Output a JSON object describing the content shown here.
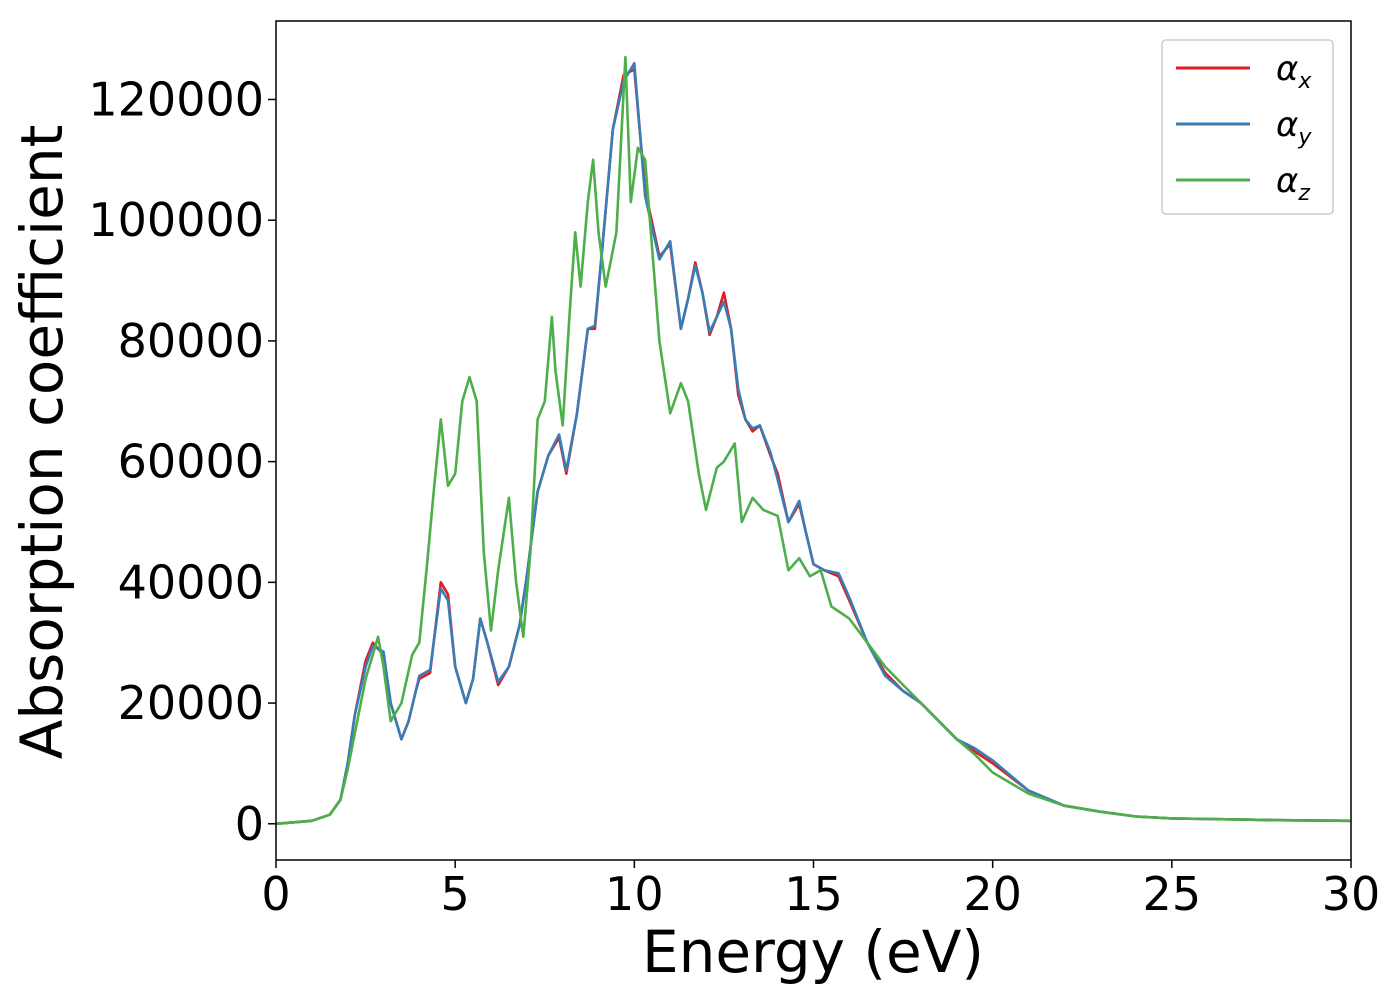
{
  "chart_data": {
    "type": "line",
    "xlabel": "Energy (eV)",
    "ylabel": "Absorption coefficient",
    "xlim": [
      0,
      30
    ],
    "ylim": [
      -6000,
      133000
    ],
    "xticks": [
      "0",
      "5",
      "10",
      "15",
      "20",
      "25",
      "30"
    ],
    "yticks": [
      "0",
      "20000",
      "40000",
      "60000",
      "80000",
      "100000",
      "120000"
    ],
    "grid": false,
    "legend_position": "top-right",
    "series": [
      {
        "name": "α_x",
        "legend_main": "α",
        "legend_sub": "x",
        "color": "#e41a1c",
        "x": [
          0,
          1,
          1.5,
          1.8,
          2.0,
          2.2,
          2.5,
          2.7,
          3.0,
          3.2,
          3.5,
          3.7,
          3.9,
          4.0,
          4.3,
          4.6,
          4.8,
          5.0,
          5.3,
          5.5,
          5.7,
          5.9,
          6.2,
          6.5,
          6.8,
          7.0,
          7.3,
          7.6,
          7.9,
          8.1,
          8.4,
          8.7,
          8.9,
          9.1,
          9.4,
          9.7,
          10.0,
          10.3,
          10.7,
          11.0,
          11.3,
          11.5,
          11.7,
          11.9,
          12.1,
          12.3,
          12.5,
          12.7,
          12.9,
          13.1,
          13.3,
          13.5,
          13.8,
          14.0,
          14.3,
          14.6,
          14.8,
          15.0,
          15.3,
          15.7,
          16.0,
          16.5,
          17.0,
          17.5,
          18.0,
          18.5,
          19.0,
          19.5,
          20.0,
          21.0,
          22.0,
          23.0,
          24.0,
          25.0,
          26.0,
          27.0,
          28.0,
          30.0
        ],
        "y": [
          0,
          500,
          1500,
          4000,
          10000,
          18000,
          27000,
          30000,
          28000,
          20000,
          14000,
          17000,
          22000,
          24000,
          25000,
          40000,
          38000,
          26000,
          20000,
          24000,
          34000,
          30000,
          23000,
          26000,
          33000,
          41000,
          55000,
          61000,
          64000,
          58000,
          68000,
          82000,
          82000,
          95000,
          115000,
          124000,
          125000,
          105000,
          94000,
          96000,
          82000,
          87000,
          93000,
          88000,
          81000,
          84000,
          88000,
          82000,
          71000,
          67000,
          65000,
          66000,
          61000,
          58000,
          50000,
          53000,
          48000,
          43000,
          42000,
          41000,
          37000,
          30000,
          25000,
          22000,
          20000,
          17000,
          14000,
          12000,
          10000,
          5500,
          3000,
          2000,
          1200,
          900,
          800,
          700,
          600,
          500
        ]
      },
      {
        "name": "α_y",
        "legend_main": "α",
        "legend_sub": "y",
        "color": "#377eb8",
        "x": [
          0,
          1,
          1.5,
          1.8,
          2.0,
          2.2,
          2.5,
          2.7,
          3.0,
          3.2,
          3.5,
          3.7,
          3.9,
          4.0,
          4.3,
          4.6,
          4.8,
          5.0,
          5.3,
          5.5,
          5.7,
          5.9,
          6.2,
          6.5,
          6.8,
          7.0,
          7.3,
          7.6,
          7.9,
          8.1,
          8.4,
          8.7,
          8.9,
          9.1,
          9.4,
          9.7,
          10.0,
          10.3,
          10.7,
          11.0,
          11.3,
          11.5,
          11.7,
          11.9,
          12.1,
          12.3,
          12.5,
          12.7,
          12.9,
          13.1,
          13.3,
          13.5,
          13.8,
          14.0,
          14.3,
          14.6,
          14.8,
          15.0,
          15.3,
          15.7,
          16.0,
          16.5,
          17.0,
          17.5,
          18.0,
          18.5,
          19.0,
          19.5,
          20.0,
          21.0,
          22.0,
          23.0,
          24.0,
          25.0,
          26.0,
          27.0,
          28.0,
          30.0
        ],
        "y": [
          0,
          500,
          1500,
          4000,
          10000,
          18000,
          26000,
          29500,
          28500,
          20000,
          14000,
          17000,
          22000,
          24500,
          25500,
          39000,
          37000,
          26000,
          20000,
          24000,
          34000,
          30000,
          23500,
          26000,
          33000,
          41000,
          55000,
          61000,
          64500,
          58500,
          68000,
          82000,
          82500,
          95000,
          115000,
          123000,
          126000,
          104000,
          93500,
          96500,
          82000,
          87000,
          92500,
          88000,
          81500,
          84000,
          86500,
          82000,
          72000,
          67000,
          65500,
          66000,
          61500,
          57000,
          50000,
          53500,
          48000,
          43000,
          42000,
          41500,
          37500,
          30000,
          24500,
          22000,
          20000,
          17000,
          14000,
          12500,
          10500,
          5500,
          3000,
          2000,
          1200,
          900,
          800,
          700,
          600,
          500
        ]
      },
      {
        "name": "α_z",
        "legend_main": "α",
        "legend_sub": "z",
        "color": "#4daf4a",
        "x": [
          0,
          1,
          1.5,
          1.8,
          2.0,
          2.2,
          2.5,
          2.7,
          2.85,
          3.0,
          3.2,
          3.5,
          3.8,
          4.0,
          4.2,
          4.4,
          4.6,
          4.8,
          5.0,
          5.2,
          5.4,
          5.6,
          5.8,
          6.0,
          6.2,
          6.5,
          6.7,
          6.9,
          7.1,
          7.3,
          7.5,
          7.7,
          7.8,
          8.0,
          8.2,
          8.35,
          8.5,
          8.7,
          8.85,
          9.0,
          9.2,
          9.5,
          9.75,
          9.9,
          10.1,
          10.3,
          10.5,
          10.7,
          11.0,
          11.3,
          11.5,
          11.8,
          12.0,
          12.3,
          12.5,
          12.8,
          13.0,
          13.3,
          13.6,
          14.0,
          14.3,
          14.6,
          14.9,
          15.2,
          15.5,
          16.0,
          16.5,
          17.0,
          17.5,
          18.0,
          18.5,
          19.0,
          19.5,
          20.0,
          21.0,
          22.0,
          23.0,
          24.0,
          25.0,
          26.0,
          27.0,
          28.0,
          30.0
        ],
        "y": [
          0,
          500,
          1500,
          4000,
          9000,
          15000,
          24000,
          28000,
          31000,
          26000,
          17000,
          20000,
          28000,
          30000,
          42000,
          55000,
          67000,
          56000,
          58000,
          70000,
          74000,
          70000,
          45000,
          32000,
          42000,
          54000,
          40000,
          31000,
          45000,
          67000,
          70000,
          84000,
          75000,
          66000,
          85000,
          98000,
          89000,
          103000,
          110000,
          98000,
          89000,
          98000,
          127000,
          103000,
          112000,
          110000,
          95000,
          80000,
          68000,
          73000,
          70000,
          58000,
          52000,
          59000,
          60000,
          63000,
          50000,
          54000,
          52000,
          51000,
          42000,
          44000,
          41000,
          42000,
          36000,
          34000,
          30000,
          26000,
          23000,
          20000,
          17000,
          14000,
          11500,
          8500,
          5000,
          3000,
          2000,
          1200,
          900,
          800,
          700,
          600,
          500
        ]
      }
    ]
  }
}
